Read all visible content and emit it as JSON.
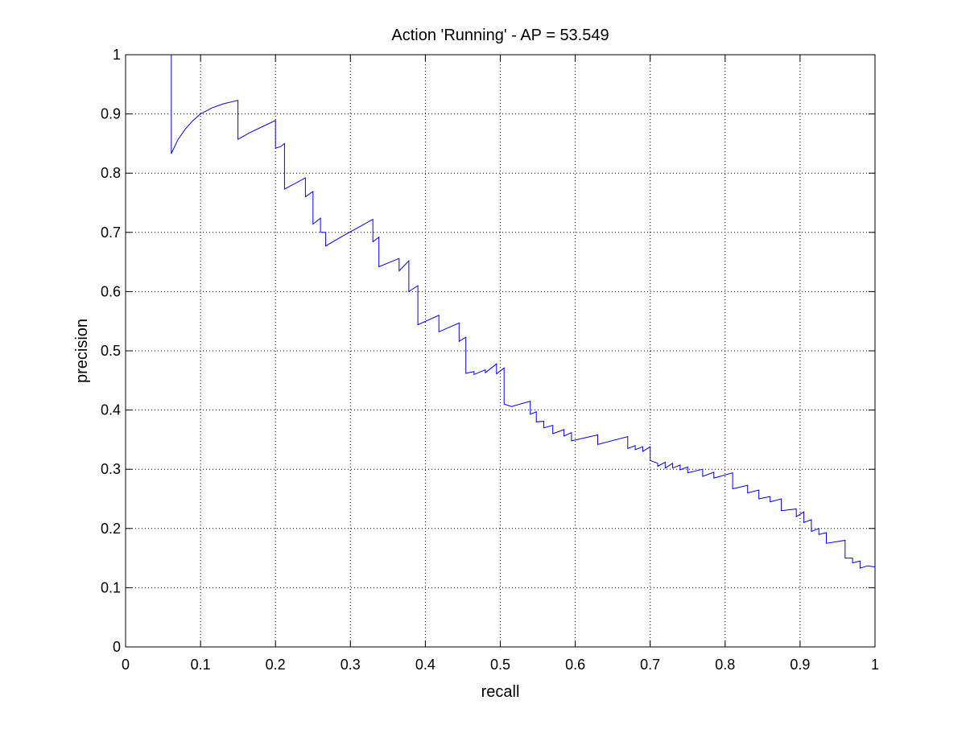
{
  "chart_data": {
    "type": "line",
    "title": "Action 'Running' - AP = 53.549",
    "xlabel": "recall",
    "ylabel": "precision",
    "xlim": [
      0,
      1
    ],
    "ylim": [
      0,
      1
    ],
    "xticks": [
      "0",
      "0.1",
      "0.2",
      "0.3",
      "0.4",
      "0.5",
      "0.6",
      "0.7",
      "0.8",
      "0.9",
      "1"
    ],
    "yticks": [
      "0",
      "0.1",
      "0.2",
      "0.3",
      "0.4",
      "0.5",
      "0.6",
      "0.7",
      "0.8",
      "0.9",
      "1"
    ],
    "grid": true,
    "series": [
      {
        "color": "#0000ff",
        "points": [
          [
            0.061,
            1.0
          ],
          [
            0.061,
            0.833
          ],
          [
            0.07,
            0.857
          ],
          [
            0.08,
            0.875
          ],
          [
            0.09,
            0.889
          ],
          [
            0.1,
            0.9
          ],
          [
            0.115,
            0.91
          ],
          [
            0.13,
            0.917
          ],
          [
            0.15,
            0.923
          ],
          [
            0.15,
            0.857
          ],
          [
            0.165,
            0.868
          ],
          [
            0.18,
            0.877
          ],
          [
            0.2,
            0.889
          ],
          [
            0.2,
            0.842
          ],
          [
            0.207,
            0.845
          ],
          [
            0.212,
            0.85
          ],
          [
            0.212,
            0.773
          ],
          [
            0.24,
            0.792
          ],
          [
            0.24,
            0.76
          ],
          [
            0.25,
            0.769
          ],
          [
            0.25,
            0.714
          ],
          [
            0.26,
            0.724
          ],
          [
            0.26,
            0.7
          ],
          [
            0.267,
            0.7
          ],
          [
            0.267,
            0.677
          ],
          [
            0.29,
            0.694
          ],
          [
            0.31,
            0.708
          ],
          [
            0.33,
            0.722
          ],
          [
            0.33,
            0.684
          ],
          [
            0.338,
            0.692
          ],
          [
            0.338,
            0.642
          ],
          [
            0.365,
            0.656
          ],
          [
            0.365,
            0.635
          ],
          [
            0.378,
            0.652
          ],
          [
            0.378,
            0.6
          ],
          [
            0.39,
            0.61
          ],
          [
            0.39,
            0.544
          ],
          [
            0.418,
            0.56
          ],
          [
            0.418,
            0.532
          ],
          [
            0.445,
            0.547
          ],
          [
            0.445,
            0.516
          ],
          [
            0.454,
            0.523
          ],
          [
            0.454,
            0.462
          ],
          [
            0.465,
            0.465
          ],
          [
            0.465,
            0.46
          ],
          [
            0.48,
            0.468
          ],
          [
            0.48,
            0.463
          ],
          [
            0.495,
            0.478
          ],
          [
            0.495,
            0.461
          ],
          [
            0.505,
            0.471
          ],
          [
            0.505,
            0.41
          ],
          [
            0.515,
            0.406
          ],
          [
            0.54,
            0.415
          ],
          [
            0.54,
            0.393
          ],
          [
            0.548,
            0.397
          ],
          [
            0.548,
            0.38
          ],
          [
            0.558,
            0.381
          ],
          [
            0.558,
            0.37
          ],
          [
            0.57,
            0.374
          ],
          [
            0.57,
            0.36
          ],
          [
            0.585,
            0.367
          ],
          [
            0.585,
            0.356
          ],
          [
            0.595,
            0.362
          ],
          [
            0.595,
            0.348
          ],
          [
            0.63,
            0.358
          ],
          [
            0.63,
            0.342
          ],
          [
            0.67,
            0.355
          ],
          [
            0.67,
            0.335
          ],
          [
            0.68,
            0.34
          ],
          [
            0.68,
            0.333
          ],
          [
            0.69,
            0.338
          ],
          [
            0.69,
            0.33
          ],
          [
            0.7,
            0.338
          ],
          [
            0.7,
            0.315
          ],
          [
            0.71,
            0.31
          ],
          [
            0.71,
            0.305
          ],
          [
            0.72,
            0.312
          ],
          [
            0.72,
            0.302
          ],
          [
            0.73,
            0.31
          ],
          [
            0.73,
            0.302
          ],
          [
            0.74,
            0.307
          ],
          [
            0.74,
            0.299
          ],
          [
            0.75,
            0.304
          ],
          [
            0.75,
            0.294
          ],
          [
            0.77,
            0.3
          ],
          [
            0.77,
            0.288
          ],
          [
            0.785,
            0.295
          ],
          [
            0.785,
            0.285
          ],
          [
            0.81,
            0.294
          ],
          [
            0.81,
            0.267
          ],
          [
            0.83,
            0.273
          ],
          [
            0.83,
            0.26
          ],
          [
            0.845,
            0.265
          ],
          [
            0.845,
            0.25
          ],
          [
            0.86,
            0.254
          ],
          [
            0.86,
            0.245
          ],
          [
            0.875,
            0.25
          ],
          [
            0.875,
            0.23
          ],
          [
            0.895,
            0.233
          ],
          [
            0.895,
            0.22
          ],
          [
            0.905,
            0.228
          ],
          [
            0.905,
            0.21
          ],
          [
            0.915,
            0.215
          ],
          [
            0.915,
            0.195
          ],
          [
            0.925,
            0.2
          ],
          [
            0.925,
            0.19
          ],
          [
            0.935,
            0.193
          ],
          [
            0.935,
            0.175
          ],
          [
            0.95,
            0.178
          ],
          [
            0.96,
            0.18
          ],
          [
            0.96,
            0.15
          ],
          [
            0.97,
            0.15
          ],
          [
            0.97,
            0.142
          ],
          [
            0.98,
            0.145
          ],
          [
            0.98,
            0.133
          ],
          [
            0.99,
            0.137
          ],
          [
            1.0,
            0.135
          ]
        ]
      }
    ]
  }
}
